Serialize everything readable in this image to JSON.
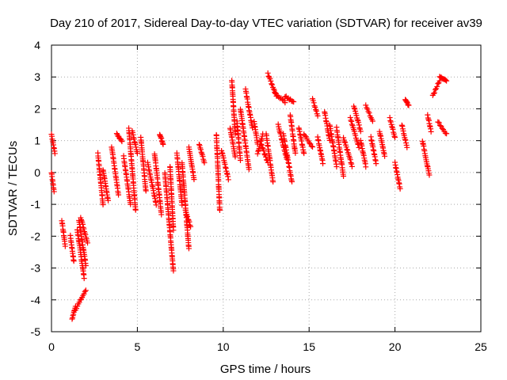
{
  "chart_data": {
    "type": "scatter",
    "title": "Day 210 of 2017, Sidereal Day-to-day VTEC variation (SDTVAR) for receiver av39",
    "xlabel": "GPS time / hours",
    "ylabel": "SDTVAR / TECUs",
    "xlim": [
      0,
      25
    ],
    "ylim": [
      -5,
      4
    ],
    "x_ticks": [
      0,
      5,
      10,
      15,
      20,
      25
    ],
    "y_ticks": [
      -5,
      -4,
      -3,
      -2,
      -1,
      0,
      1,
      2,
      3,
      4
    ],
    "grid": true,
    "marker": "plus",
    "colors": {
      "series": "#ff0000",
      "grid": "#aaaaaa",
      "axis": "#000000"
    },
    "segments": [
      [
        0.0,
        1.2,
        0.2,
        0.6
      ],
      [
        0.0,
        0.0,
        0.15,
        -0.6
      ],
      [
        0.6,
        -1.5,
        0.8,
        -2.3
      ],
      [
        1.1,
        -2.0,
        1.3,
        -2.8
      ],
      [
        1.2,
        -4.6,
        1.4,
        -4.2
      ],
      [
        1.4,
        -4.3,
        2.0,
        -3.7
      ],
      [
        1.5,
        -1.8,
        1.9,
        -3.3
      ],
      [
        1.6,
        -1.5,
        2.0,
        -2.9
      ],
      [
        1.7,
        -1.4,
        2.1,
        -2.2
      ],
      [
        2.7,
        0.6,
        3.0,
        -1.0
      ],
      [
        3.0,
        0.1,
        3.3,
        -0.9
      ],
      [
        3.5,
        0.8,
        3.9,
        -0.7
      ],
      [
        3.8,
        1.2,
        4.1,
        1.0
      ],
      [
        4.2,
        0.5,
        4.6,
        -1.0
      ],
      [
        4.5,
        1.4,
        4.9,
        -1.2
      ],
      [
        4.7,
        1.3,
        5.0,
        0.6
      ],
      [
        5.2,
        1.1,
        5.5,
        -0.6
      ],
      [
        5.6,
        0.3,
        6.1,
        -1.0
      ],
      [
        6.0,
        0.6,
        6.4,
        -1.3
      ],
      [
        6.3,
        1.2,
        6.5,
        0.9
      ],
      [
        6.6,
        0.0,
        7.1,
        -3.1
      ],
      [
        6.9,
        0.2,
        7.1,
        -1.8
      ],
      [
        7.3,
        0.6,
        7.6,
        -1.0
      ],
      [
        7.6,
        0.3,
        8.0,
        -2.4
      ],
      [
        7.8,
        -1.2,
        8.1,
        -1.7
      ],
      [
        8.0,
        0.8,
        8.3,
        -0.2
      ],
      [
        8.6,
        0.9,
        8.9,
        0.3
      ],
      [
        9.6,
        1.2,
        9.8,
        -1.2
      ],
      [
        9.9,
        0.7,
        10.3,
        -0.2
      ],
      [
        10.4,
        1.4,
        10.7,
        0.5
      ],
      [
        10.5,
        2.9,
        10.7,
        1.2
      ],
      [
        10.8,
        1.6,
        11.0,
        0.4
      ],
      [
        11.0,
        2.0,
        11.5,
        0.1
      ],
      [
        11.3,
        2.6,
        11.7,
        1.4
      ],
      [
        11.8,
        1.6,
        12.0,
        0.9
      ],
      [
        12.0,
        0.6,
        12.3,
        1.2
      ],
      [
        12.2,
        0.9,
        12.6,
        0.3
      ],
      [
        12.5,
        1.2,
        12.9,
        -0.3
      ],
      [
        12.6,
        3.1,
        13.1,
        2.4
      ],
      [
        13.0,
        2.5,
        13.6,
        2.2
      ],
      [
        13.2,
        1.5,
        13.7,
        0.4
      ],
      [
        13.5,
        1.2,
        14.0,
        -0.3
      ],
      [
        13.6,
        2.4,
        14.1,
        2.2
      ],
      [
        13.9,
        1.8,
        14.2,
        0.6
      ],
      [
        14.4,
        1.4,
        14.7,
        0.6
      ],
      [
        14.7,
        1.2,
        15.2,
        0.8
      ],
      [
        15.2,
        2.3,
        15.5,
        1.8
      ],
      [
        15.5,
        1.1,
        15.8,
        0.3
      ],
      [
        15.9,
        1.9,
        16.2,
        1.0
      ],
      [
        16.2,
        1.5,
        16.6,
        0.2
      ],
      [
        16.6,
        1.4,
        17.0,
        -0.1
      ],
      [
        17.0,
        1.1,
        17.5,
        0.2
      ],
      [
        17.4,
        1.7,
        17.9,
        0.8
      ],
      [
        17.6,
        2.1,
        18.0,
        1.3
      ],
      [
        18.0,
        1.0,
        18.3,
        0.2
      ],
      [
        18.3,
        2.1,
        18.7,
        1.6
      ],
      [
        18.6,
        1.1,
        18.9,
        0.3
      ],
      [
        19.1,
        1.3,
        19.4,
        0.5
      ],
      [
        19.7,
        1.7,
        20.0,
        1.1
      ],
      [
        20.0,
        0.3,
        20.3,
        -0.5
      ],
      [
        20.4,
        1.5,
        20.7,
        0.8
      ],
      [
        20.6,
        2.3,
        20.8,
        2.1
      ],
      [
        21.6,
        1.0,
        22.0,
        -0.1
      ],
      [
        21.9,
        1.8,
        22.1,
        1.3
      ],
      [
        22.2,
        2.4,
        22.6,
        2.9
      ],
      [
        22.5,
        1.6,
        23.0,
        1.2
      ],
      [
        22.6,
        3.0,
        23.0,
        2.9
      ]
    ]
  }
}
